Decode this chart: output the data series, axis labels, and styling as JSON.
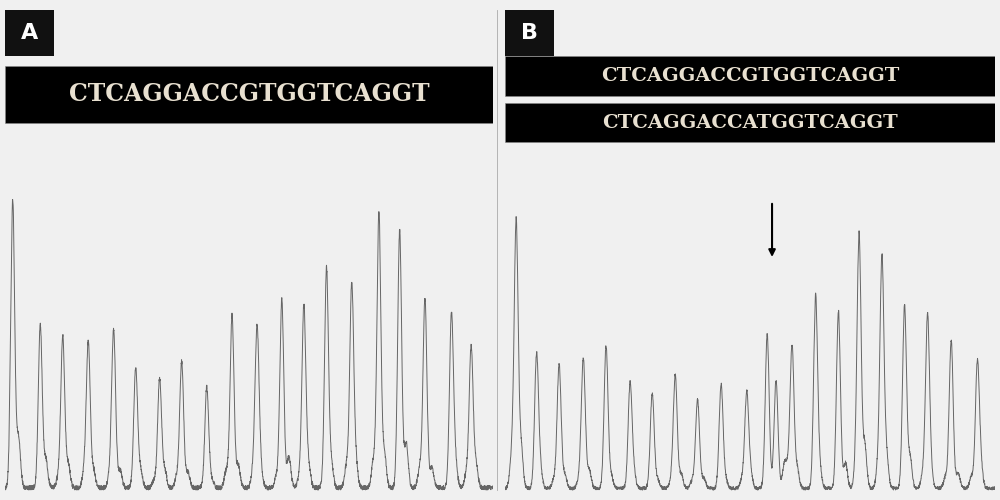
{
  "panel_A_label": "A",
  "panel_B_label": "B",
  "seq_A": "CTCAGGACCGTGGTCAGGT",
  "seq_B1": "CTCAGGACCGTGGTCAGGT",
  "seq_B2": "CTCAGGACCATGGTCAGGT",
  "bg_color": "#000000",
  "text_color": "#e8e0d0",
  "label_bg": "#111111",
  "label_text": "#ffffff",
  "chromatogram_color": "#666666",
  "fig_bg": "#f0f0f0",
  "arrow_color": "#000000",
  "font_size_seq_A": 17,
  "font_size_seq_B": 14,
  "font_size_label": 16,
  "banner_edge_color": "#888888"
}
